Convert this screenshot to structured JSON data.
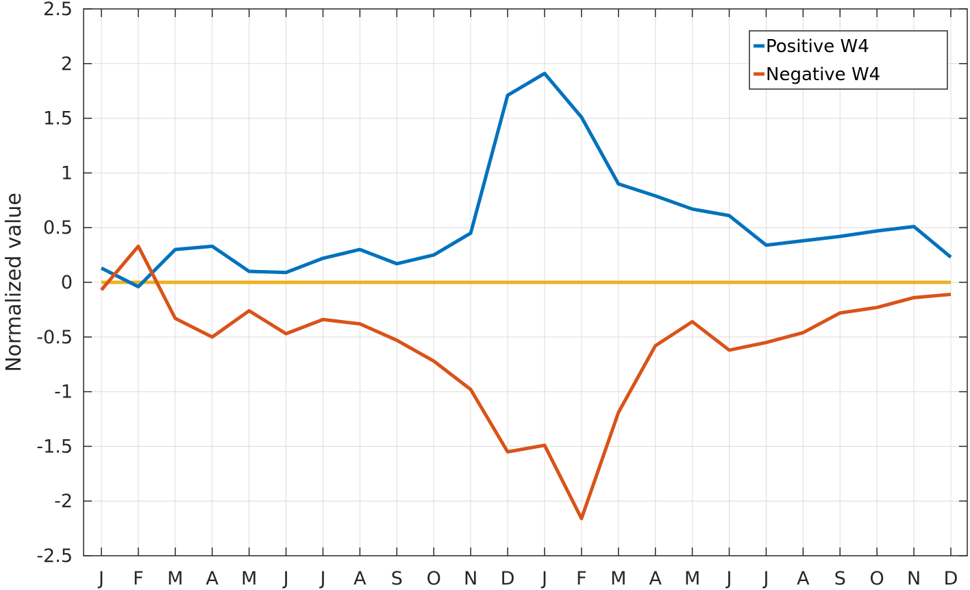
{
  "chart_data": {
    "type": "line",
    "ylabel": "Normalized value",
    "xlabel": "",
    "ylim": [
      -2.5,
      2.5
    ],
    "yticks": [
      2.5,
      2,
      1.5,
      1,
      0.5,
      0,
      -0.5,
      -1,
      -1.5,
      -2,
      -2.5
    ],
    "ytick_labels": [
      "2.5",
      "2",
      "1.5",
      "1",
      "0.5",
      "0",
      "-0.5",
      "-1",
      "-1.5",
      "-2",
      "-2.5"
    ],
    "categories": [
      "J",
      "F",
      "M",
      "A",
      "M",
      "J",
      "J",
      "A",
      "S",
      "O",
      "N",
      "D",
      "J",
      "F",
      "M",
      "A",
      "M",
      "J",
      "J",
      "A",
      "S",
      "O",
      "N",
      "D"
    ],
    "grid": true,
    "legend_position": "top-right",
    "series": [
      {
        "name": "Positive W4",
        "color": "#0072BD",
        "legend": true,
        "values": [
          0.13,
          -0.04,
          0.3,
          0.33,
          0.1,
          0.09,
          0.22,
          0.3,
          0.17,
          0.25,
          0.45,
          1.71,
          1.91,
          1.51,
          0.9,
          0.79,
          0.67,
          0.61,
          0.34,
          0.38,
          0.42,
          0.47,
          0.51,
          0.23
        ]
      },
      {
        "name": "Negative W4",
        "color": "#D95319",
        "legend": true,
        "values": [
          -0.07,
          0.33,
          -0.33,
          -0.5,
          -0.26,
          -0.47,
          -0.34,
          -0.38,
          -0.53,
          -0.72,
          -0.98,
          -1.55,
          -1.49,
          -2.16,
          -1.19,
          -0.58,
          -0.36,
          -0.62,
          -0.55,
          -0.46,
          -0.28,
          -0.23,
          -0.14,
          -0.11
        ]
      },
      {
        "color": "#EDB120",
        "legend": false,
        "values": [
          0,
          0,
          0,
          0,
          0,
          0,
          0,
          0,
          0,
          0,
          0,
          0,
          0,
          0,
          0,
          0,
          0,
          0,
          0,
          0,
          0,
          0,
          0,
          0
        ]
      }
    ]
  }
}
